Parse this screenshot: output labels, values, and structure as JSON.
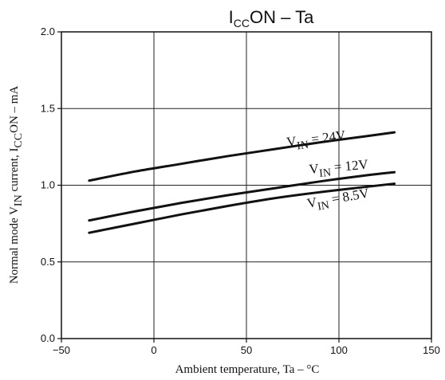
{
  "chart_data": {
    "type": "line",
    "title": {
      "main": "I",
      "sub": "CC",
      "rest": "ON  –  Ta"
    },
    "xlabel": "Ambient temperature,  Ta  –   °C",
    "ylabel": {
      "pre": "Normal mode V",
      "sub1": "IN",
      "mid": " current, I",
      "sub2": "CC",
      "post": "ON  –  mA"
    },
    "xlim": [
      -50,
      150
    ],
    "ylim": [
      0.0,
      2.0
    ],
    "x_ticks": [
      -50,
      0,
      50,
      100,
      150
    ],
    "x_tick_labels": [
      "−50",
      "0",
      "50",
      "100",
      "150"
    ],
    "y_ticks": [
      0.0,
      0.5,
      1.0,
      1.5,
      2.0
    ],
    "y_tick_labels": [
      "0.0",
      "0.5",
      "1.0",
      "1.5",
      "2.0"
    ],
    "grid": true,
    "series": [
      {
        "label_pre": "V",
        "label_sub": "IN",
        "label_post": " = 24V",
        "x": [
          -35,
          -10,
          15,
          40,
          65,
          90,
          115,
          130
        ],
        "y": [
          1.03,
          1.09,
          1.14,
          1.19,
          1.235,
          1.28,
          1.32,
          1.345
        ]
      },
      {
        "label_pre": "V",
        "label_sub": "IN",
        "label_post": " = 12V",
        "x": [
          -35,
          -10,
          15,
          40,
          65,
          90,
          115,
          130
        ],
        "y": [
          0.77,
          0.83,
          0.885,
          0.935,
          0.98,
          1.025,
          1.065,
          1.085
        ]
      },
      {
        "label_pre": "V",
        "label_sub": "IN",
        "label_post": " = 8.5V",
        "x": [
          -35,
          -10,
          15,
          40,
          65,
          90,
          115,
          130
        ],
        "y": [
          0.69,
          0.75,
          0.81,
          0.865,
          0.915,
          0.955,
          0.99,
          1.01
        ]
      }
    ]
  }
}
